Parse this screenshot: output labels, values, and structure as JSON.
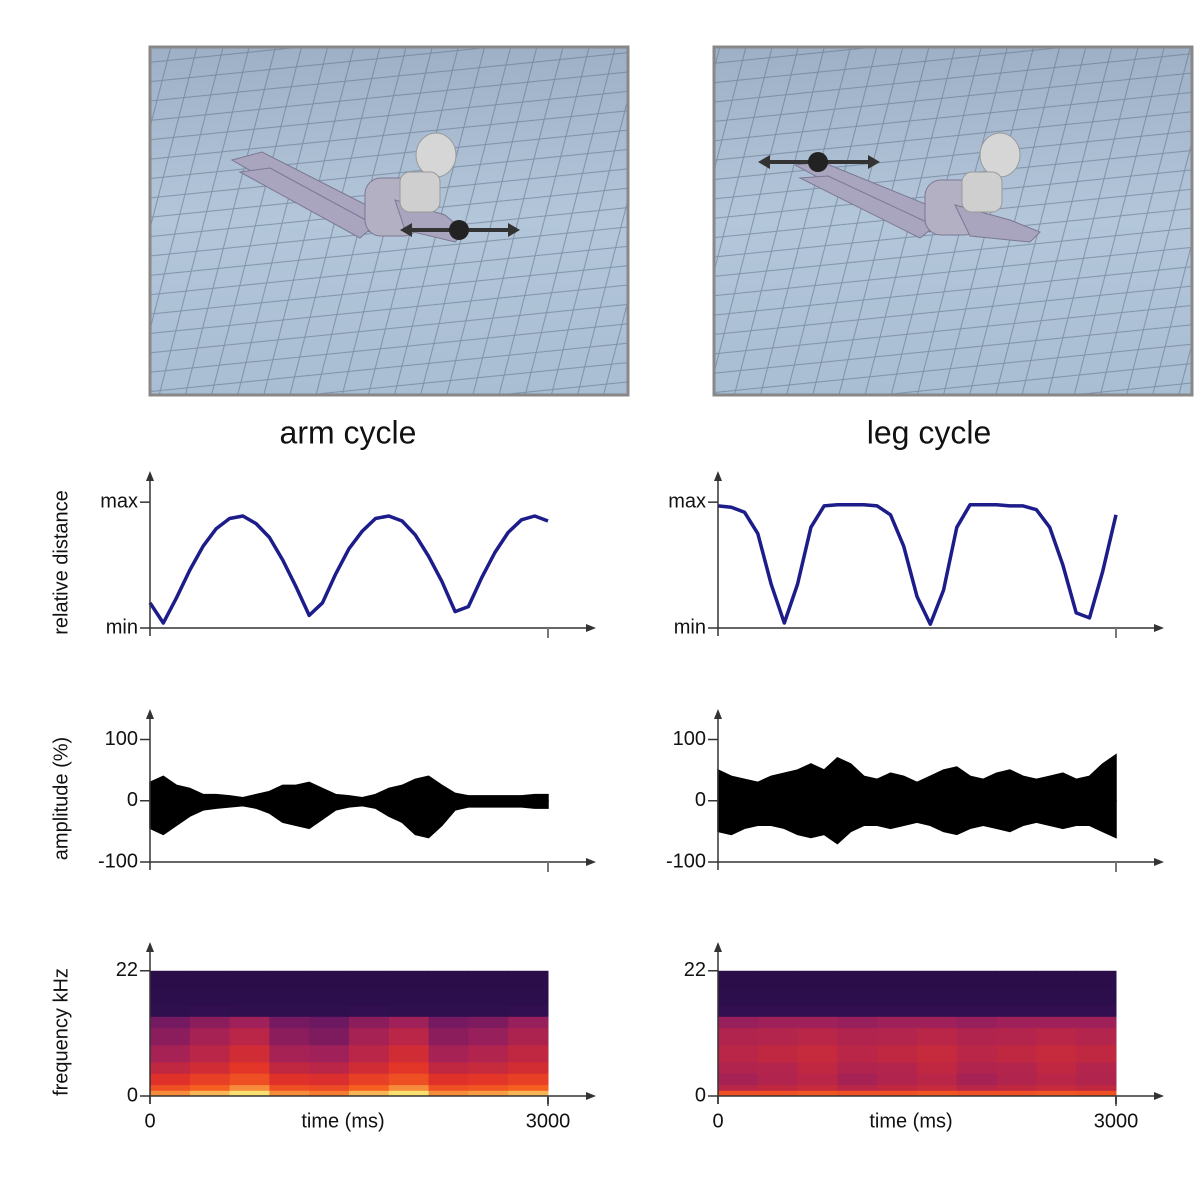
{
  "panels": [
    {
      "title": "arm cycle"
    },
    {
      "title": "leg cycle"
    }
  ],
  "chart_data": [
    {
      "type": "line",
      "ylabel": "relative distance",
      "color": "#1c1c8a",
      "x": [
        0,
        100,
        200,
        300,
        400,
        500,
        600,
        700,
        800,
        900,
        1000,
        1100,
        1200,
        1300,
        1400,
        1500,
        1600,
        1700,
        1800,
        1900,
        2000,
        2100,
        2200,
        2300,
        2400,
        2500,
        2600,
        2700,
        2800,
        2900,
        3000
      ],
      "values": [
        0.2,
        0.04,
        0.24,
        0.46,
        0.65,
        0.79,
        0.87,
        0.89,
        0.83,
        0.72,
        0.54,
        0.33,
        0.1,
        0.2,
        0.43,
        0.63,
        0.77,
        0.87,
        0.89,
        0.85,
        0.74,
        0.57,
        0.37,
        0.13,
        0.17,
        0.4,
        0.6,
        0.76,
        0.86,
        0.89,
        0.85
      ],
      "xlim": [
        0,
        3000
      ],
      "ylim": [
        0,
        1.2
      ],
      "yticks": [
        {
          "value": 0,
          "label": "min"
        },
        {
          "value": 1,
          "label": "max"
        }
      ]
    },
    {
      "type": "line",
      "color": "#1c1c8a",
      "x": [
        0,
        100,
        200,
        300,
        400,
        500,
        600,
        700,
        800,
        900,
        1000,
        1100,
        1200,
        1300,
        1400,
        1500,
        1600,
        1700,
        1800,
        1900,
        2000,
        2100,
        2200,
        2300,
        2400,
        2500,
        2600,
        2700,
        2800,
        2900,
        3000
      ],
      "values": [
        0.97,
        0.96,
        0.92,
        0.75,
        0.35,
        0.04,
        0.35,
        0.8,
        0.97,
        0.98,
        0.98,
        0.98,
        0.97,
        0.9,
        0.65,
        0.25,
        0.03,
        0.3,
        0.8,
        0.98,
        0.98,
        0.98,
        0.97,
        0.97,
        0.94,
        0.8,
        0.5,
        0.12,
        0.08,
        0.45,
        0.9
      ],
      "xlim": [
        0,
        3000
      ],
      "ylim": [
        0,
        1.2
      ],
      "yticks": [
        {
          "value": 0,
          "label": "min"
        },
        {
          "value": 1,
          "label": "max"
        }
      ]
    },
    {
      "type": "waveform",
      "ylabel": "amplitude (%)",
      "color": "#000000",
      "x": [
        0,
        100,
        200,
        300,
        400,
        500,
        600,
        700,
        800,
        900,
        1000,
        1100,
        1200,
        1300,
        1400,
        1500,
        1600,
        1700,
        1800,
        1900,
        2000,
        2100,
        2200,
        2300,
        2400,
        2500,
        2600,
        2700,
        2800,
        2900,
        3000
      ],
      "series": [
        {
          "values": [
            30,
            40,
            25,
            20,
            10,
            10,
            8,
            5,
            10,
            15,
            25,
            25,
            30,
            20,
            10,
            8,
            5,
            10,
            20,
            25,
            35,
            40,
            25,
            12,
            8,
            8,
            8,
            8,
            8,
            10,
            10
          ]
        },
        {
          "values": [
            -45,
            -55,
            -40,
            -25,
            -15,
            -12,
            -10,
            -8,
            -12,
            -20,
            -35,
            -40,
            -45,
            -30,
            -15,
            -10,
            -8,
            -12,
            -25,
            -35,
            -55,
            -60,
            -40,
            -15,
            -10,
            -10,
            -10,
            -10,
            -10,
            -12,
            -12
          ]
        }
      ],
      "xlim": [
        0,
        3000
      ],
      "ylim": [
        -100,
        140
      ],
      "yticks": [
        -100,
        0,
        100
      ]
    },
    {
      "type": "waveform",
      "color": "#000000",
      "x": [
        0,
        100,
        200,
        300,
        400,
        500,
        600,
        700,
        800,
        900,
        1000,
        1100,
        1200,
        1300,
        1400,
        1500,
        1600,
        1700,
        1800,
        1900,
        2000,
        2100,
        2200,
        2300,
        2400,
        2500,
        2600,
        2700,
        2800,
        2900,
        3000
      ],
      "series": [
        {
          "values": [
            50,
            40,
            35,
            30,
            40,
            45,
            50,
            60,
            50,
            70,
            60,
            40,
            35,
            45,
            40,
            30,
            40,
            50,
            55,
            40,
            35,
            45,
            50,
            40,
            35,
            40,
            45,
            35,
            40,
            60,
            75
          ]
        },
        {
          "values": [
            -50,
            -55,
            -45,
            -40,
            -40,
            -45,
            -55,
            -60,
            -55,
            -70,
            -50,
            -40,
            -40,
            -45,
            -40,
            -35,
            -40,
            -50,
            -55,
            -45,
            -40,
            -45,
            -50,
            -40,
            -35,
            -40,
            -45,
            -40,
            -40,
            -50,
            -60
          ]
        }
      ],
      "xlim": [
        0,
        3000
      ],
      "ylim": [
        -100,
        140
      ],
      "yticks": [
        -100,
        0,
        100
      ]
    },
    {
      "type": "heatmap",
      "ylabel": "frequency kHz",
      "xlabel": "time (ms)",
      "x": [
        0,
        300,
        600,
        900,
        1200,
        1500,
        1800,
        2100,
        2400,
        2700,
        3000
      ],
      "y": [
        0,
        1,
        2,
        4,
        6,
        9,
        12,
        14,
        16,
        19,
        22
      ],
      "z": [
        [
          0.9,
          0.95,
          1,
          0.9,
          0.88,
          0.95,
          1,
          0.9,
          0.92,
          0.95
        ],
        [
          0.8,
          0.85,
          0.9,
          0.8,
          0.78,
          0.85,
          0.9,
          0.8,
          0.82,
          0.85
        ],
        [
          0.7,
          0.75,
          0.8,
          0.7,
          0.68,
          0.75,
          0.8,
          0.7,
          0.72,
          0.75
        ],
        [
          0.6,
          0.65,
          0.72,
          0.6,
          0.58,
          0.65,
          0.72,
          0.6,
          0.62,
          0.66
        ],
        [
          0.52,
          0.58,
          0.65,
          0.52,
          0.5,
          0.58,
          0.65,
          0.52,
          0.55,
          0.6
        ],
        [
          0.45,
          0.52,
          0.58,
          0.45,
          0.42,
          0.52,
          0.58,
          0.45,
          0.48,
          0.54
        ],
        [
          0.4,
          0.45,
          0.5,
          0.4,
          0.38,
          0.45,
          0.5,
          0.4,
          0.42,
          0.48
        ],
        [
          0.14,
          0.15,
          0.14,
          0.14,
          0.14,
          0.15,
          0.14,
          0.14,
          0.14,
          0.15
        ],
        [
          0.12,
          0.12,
          0.12,
          0.12,
          0.12,
          0.12,
          0.12,
          0.12,
          0.12,
          0.12
        ],
        [
          0.1,
          0.1,
          0.1,
          0.1,
          0.1,
          0.1,
          0.1,
          0.1,
          0.1,
          0.1
        ]
      ],
      "xlim": [
        0,
        3000
      ],
      "ylim": [
        0,
        26
      ],
      "xticks": [
        0,
        3000
      ],
      "yticks": [
        0,
        22
      ]
    },
    {
      "type": "heatmap",
      "xlabel": "time (ms)",
      "x": [
        0,
        300,
        600,
        900,
        1200,
        1500,
        1800,
        2100,
        2400,
        2700,
        3000
      ],
      "y": [
        0,
        1,
        2,
        4,
        6,
        9,
        12,
        14,
        16,
        19,
        22
      ],
      "z": [
        [
          0.8,
          0.8,
          0.82,
          0.8,
          0.8,
          0.82,
          0.8,
          0.8,
          0.82,
          0.8
        ],
        [
          0.58,
          0.6,
          0.62,
          0.58,
          0.6,
          0.62,
          0.58,
          0.6,
          0.62,
          0.6
        ],
        [
          0.52,
          0.55,
          0.58,
          0.52,
          0.55,
          0.58,
          0.52,
          0.55,
          0.58,
          0.55
        ],
        [
          0.55,
          0.56,
          0.6,
          0.55,
          0.56,
          0.6,
          0.55,
          0.56,
          0.6,
          0.56
        ],
        [
          0.58,
          0.6,
          0.62,
          0.58,
          0.6,
          0.62,
          0.58,
          0.6,
          0.62,
          0.6
        ],
        [
          0.55,
          0.56,
          0.58,
          0.55,
          0.56,
          0.58,
          0.55,
          0.56,
          0.58,
          0.56
        ],
        [
          0.48,
          0.5,
          0.5,
          0.48,
          0.5,
          0.5,
          0.48,
          0.5,
          0.5,
          0.5
        ],
        [
          0.15,
          0.15,
          0.15,
          0.15,
          0.15,
          0.15,
          0.15,
          0.15,
          0.15,
          0.15
        ],
        [
          0.12,
          0.12,
          0.12,
          0.12,
          0.12,
          0.12,
          0.12,
          0.12,
          0.12,
          0.12
        ],
        [
          0.1,
          0.1,
          0.1,
          0.1,
          0.1,
          0.1,
          0.1,
          0.1,
          0.1,
          0.1
        ]
      ],
      "xlim": [
        0,
        3000
      ],
      "ylim": [
        0,
        26
      ],
      "xticks": [
        0,
        3000
      ],
      "yticks": [
        0,
        22
      ]
    }
  ]
}
